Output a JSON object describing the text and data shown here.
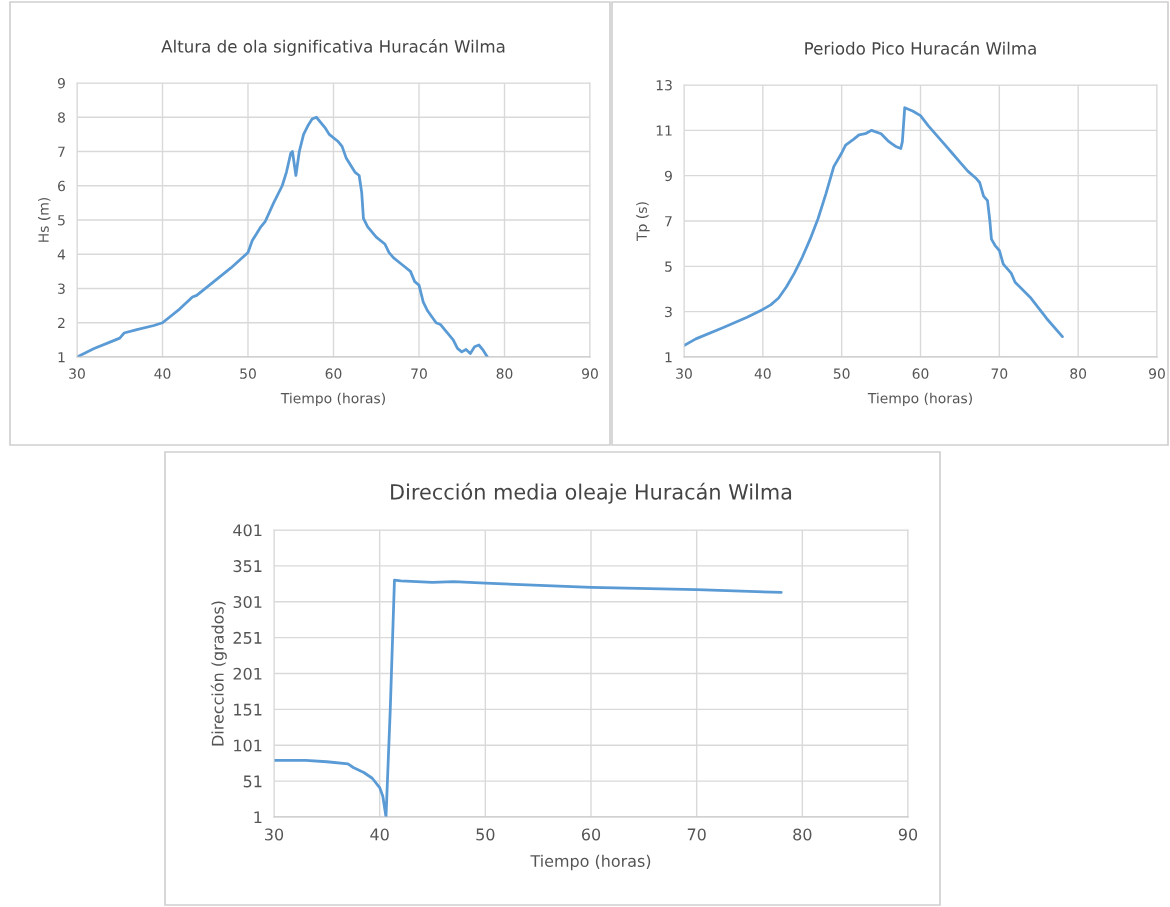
{
  "chart_data": [
    {
      "type": "line",
      "title": "Altura de ola significativa Huracán Wilma",
      "xlabel": "Tiempo (horas)",
      "ylabel": "Hs (m)",
      "xlim": [
        30,
        90
      ],
      "xticks": [
        30,
        40,
        50,
        60,
        70,
        80,
        90
      ],
      "ylim": [
        1,
        9
      ],
      "yticks": [
        1,
        2,
        3,
        4,
        5,
        6,
        7,
        8,
        9
      ],
      "grid": true,
      "series": [
        {
          "color": "#5b9bd5",
          "x": [
            30,
            32,
            34,
            35,
            35.5,
            37,
            39,
            40,
            42,
            43.5,
            44,
            46,
            48,
            50,
            50.5,
            51.5,
            52,
            53,
            54,
            54.5,
            55,
            55.2,
            55.6,
            56,
            56.5,
            57,
            57.5,
            58,
            59,
            59.5,
            60.5,
            61,
            61.5,
            62.5,
            63,
            63.3,
            63.5,
            64,
            65,
            66,
            66.5,
            67,
            68,
            69,
            69.5,
            70,
            70.5,
            71,
            72,
            72.5,
            73,
            74,
            74.5,
            75,
            75.5,
            76,
            76.5,
            77,
            77.5,
            78
          ],
          "values": [
            1.0,
            1.25,
            1.45,
            1.55,
            1.7,
            1.8,
            1.92,
            2.0,
            2.4,
            2.75,
            2.8,
            3.2,
            3.6,
            4.05,
            4.4,
            4.8,
            4.95,
            5.5,
            6.0,
            6.4,
            6.95,
            7.0,
            6.3,
            7.0,
            7.5,
            7.75,
            7.95,
            8.0,
            7.7,
            7.5,
            7.3,
            7.15,
            6.8,
            6.4,
            6.3,
            5.8,
            5.05,
            4.8,
            4.5,
            4.3,
            4.05,
            3.9,
            3.7,
            3.5,
            3.2,
            3.1,
            2.6,
            2.35,
            2.0,
            1.95,
            1.8,
            1.5,
            1.25,
            1.15,
            1.22,
            1.1,
            1.3,
            1.35,
            1.2,
            1.0
          ]
        }
      ]
    },
    {
      "type": "line",
      "title": "Periodo Pico Huracán Wilma",
      "xlabel": "Tiempo (horas)",
      "ylabel": "Tp (s)",
      "xlim": [
        30,
        90
      ],
      "xticks": [
        30,
        40,
        50,
        60,
        70,
        80,
        90
      ],
      "ylim": [
        1,
        13
      ],
      "yticks": [
        1,
        3,
        5,
        7,
        9,
        11,
        13
      ],
      "grid": true,
      "series": [
        {
          "color": "#5b9bd5",
          "x": [
            30,
            31.5,
            35,
            38,
            40,
            41,
            42,
            43,
            44,
            45,
            46,
            47,
            48,
            49,
            50,
            50.5,
            51.5,
            52.2,
            53,
            53.8,
            55,
            56,
            56.8,
            57.5,
            57.7,
            58,
            59,
            60,
            61,
            62,
            63,
            64,
            65,
            66,
            67,
            67.5,
            68,
            68.5,
            68.8,
            69,
            69.5,
            70,
            70.5,
            71.5,
            72,
            74,
            76,
            78
          ],
          "values": [
            1.5,
            1.8,
            2.3,
            2.75,
            3.1,
            3.3,
            3.6,
            4.1,
            4.7,
            5.4,
            6.2,
            7.1,
            8.2,
            9.4,
            10.0,
            10.35,
            10.6,
            10.8,
            10.85,
            11.0,
            10.85,
            10.5,
            10.3,
            10.2,
            10.5,
            12.0,
            11.85,
            11.65,
            11.2,
            10.8,
            10.4,
            10.0,
            9.6,
            9.2,
            8.9,
            8.7,
            8.1,
            7.9,
            7.0,
            6.2,
            5.9,
            5.7,
            5.1,
            4.7,
            4.3,
            3.6,
            2.7,
            1.9
          ]
        }
      ]
    },
    {
      "type": "line",
      "title": "Dirección media oleaje Huracán Wilma",
      "xlabel": "Tiempo (horas)",
      "ylabel": "Dirección (grados)",
      "xlim": [
        30,
        90
      ],
      "xticks": [
        30,
        40,
        50,
        60,
        70,
        80,
        90
      ],
      "ylim": [
        1,
        401
      ],
      "yticks": [
        1,
        51,
        101,
        151,
        201,
        251,
        301,
        351,
        401
      ],
      "grid": true,
      "series": [
        {
          "color": "#5b9bd5",
          "x": [
            30,
            33,
            35,
            37,
            37.5,
            38.5,
            39.3,
            40,
            40.3,
            40.6,
            41.0,
            41.4,
            42,
            45,
            47,
            50,
            60,
            70,
            78
          ],
          "values": [
            80,
            80,
            78,
            75,
            70,
            63,
            55,
            42,
            30,
            1,
            150,
            331,
            330,
            328,
            329,
            327,
            321,
            318,
            314
          ]
        }
      ]
    }
  ]
}
